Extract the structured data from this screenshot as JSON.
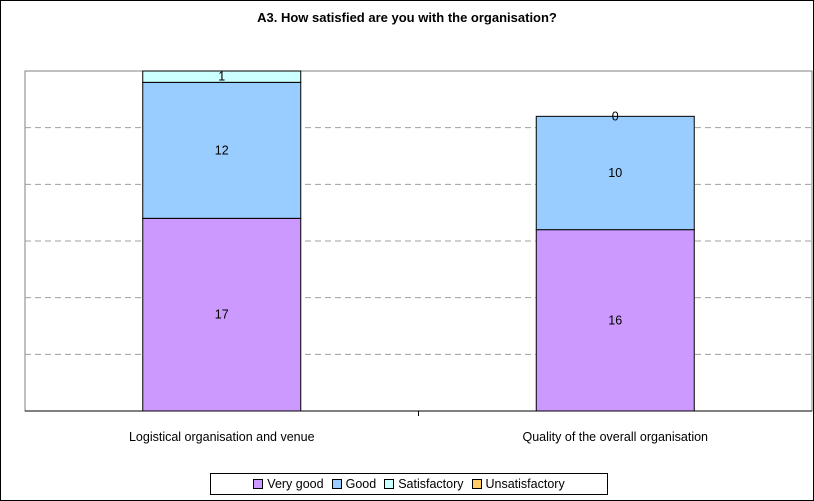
{
  "chart_data": {
    "type": "bar",
    "stacked": true,
    "title": "A3. How satisfied are you with the organisation?",
    "categories": [
      "Logistical organisation and venue",
      "Quality of the overall organisation"
    ],
    "series": [
      {
        "name": "Very good",
        "values": [
          17,
          16
        ],
        "color": "#cc99ff",
        "labels": [
          "17",
          "16"
        ]
      },
      {
        "name": "Good",
        "values": [
          12,
          10
        ],
        "color": "#99ccff",
        "labels": [
          "12",
          "10"
        ]
      },
      {
        "name": "Satisfactory",
        "values": [
          1,
          0
        ],
        "color": "#ccffff",
        "labels": [
          "1",
          "0"
        ]
      },
      {
        "name": "Unsatisfactory",
        "values": [
          0,
          0
        ],
        "color": "#ffcc66",
        "labels": [
          "0",
          "0"
        ]
      }
    ],
    "ylim": [
      0,
      30
    ],
    "grid": true,
    "legend_position": "bottom"
  }
}
